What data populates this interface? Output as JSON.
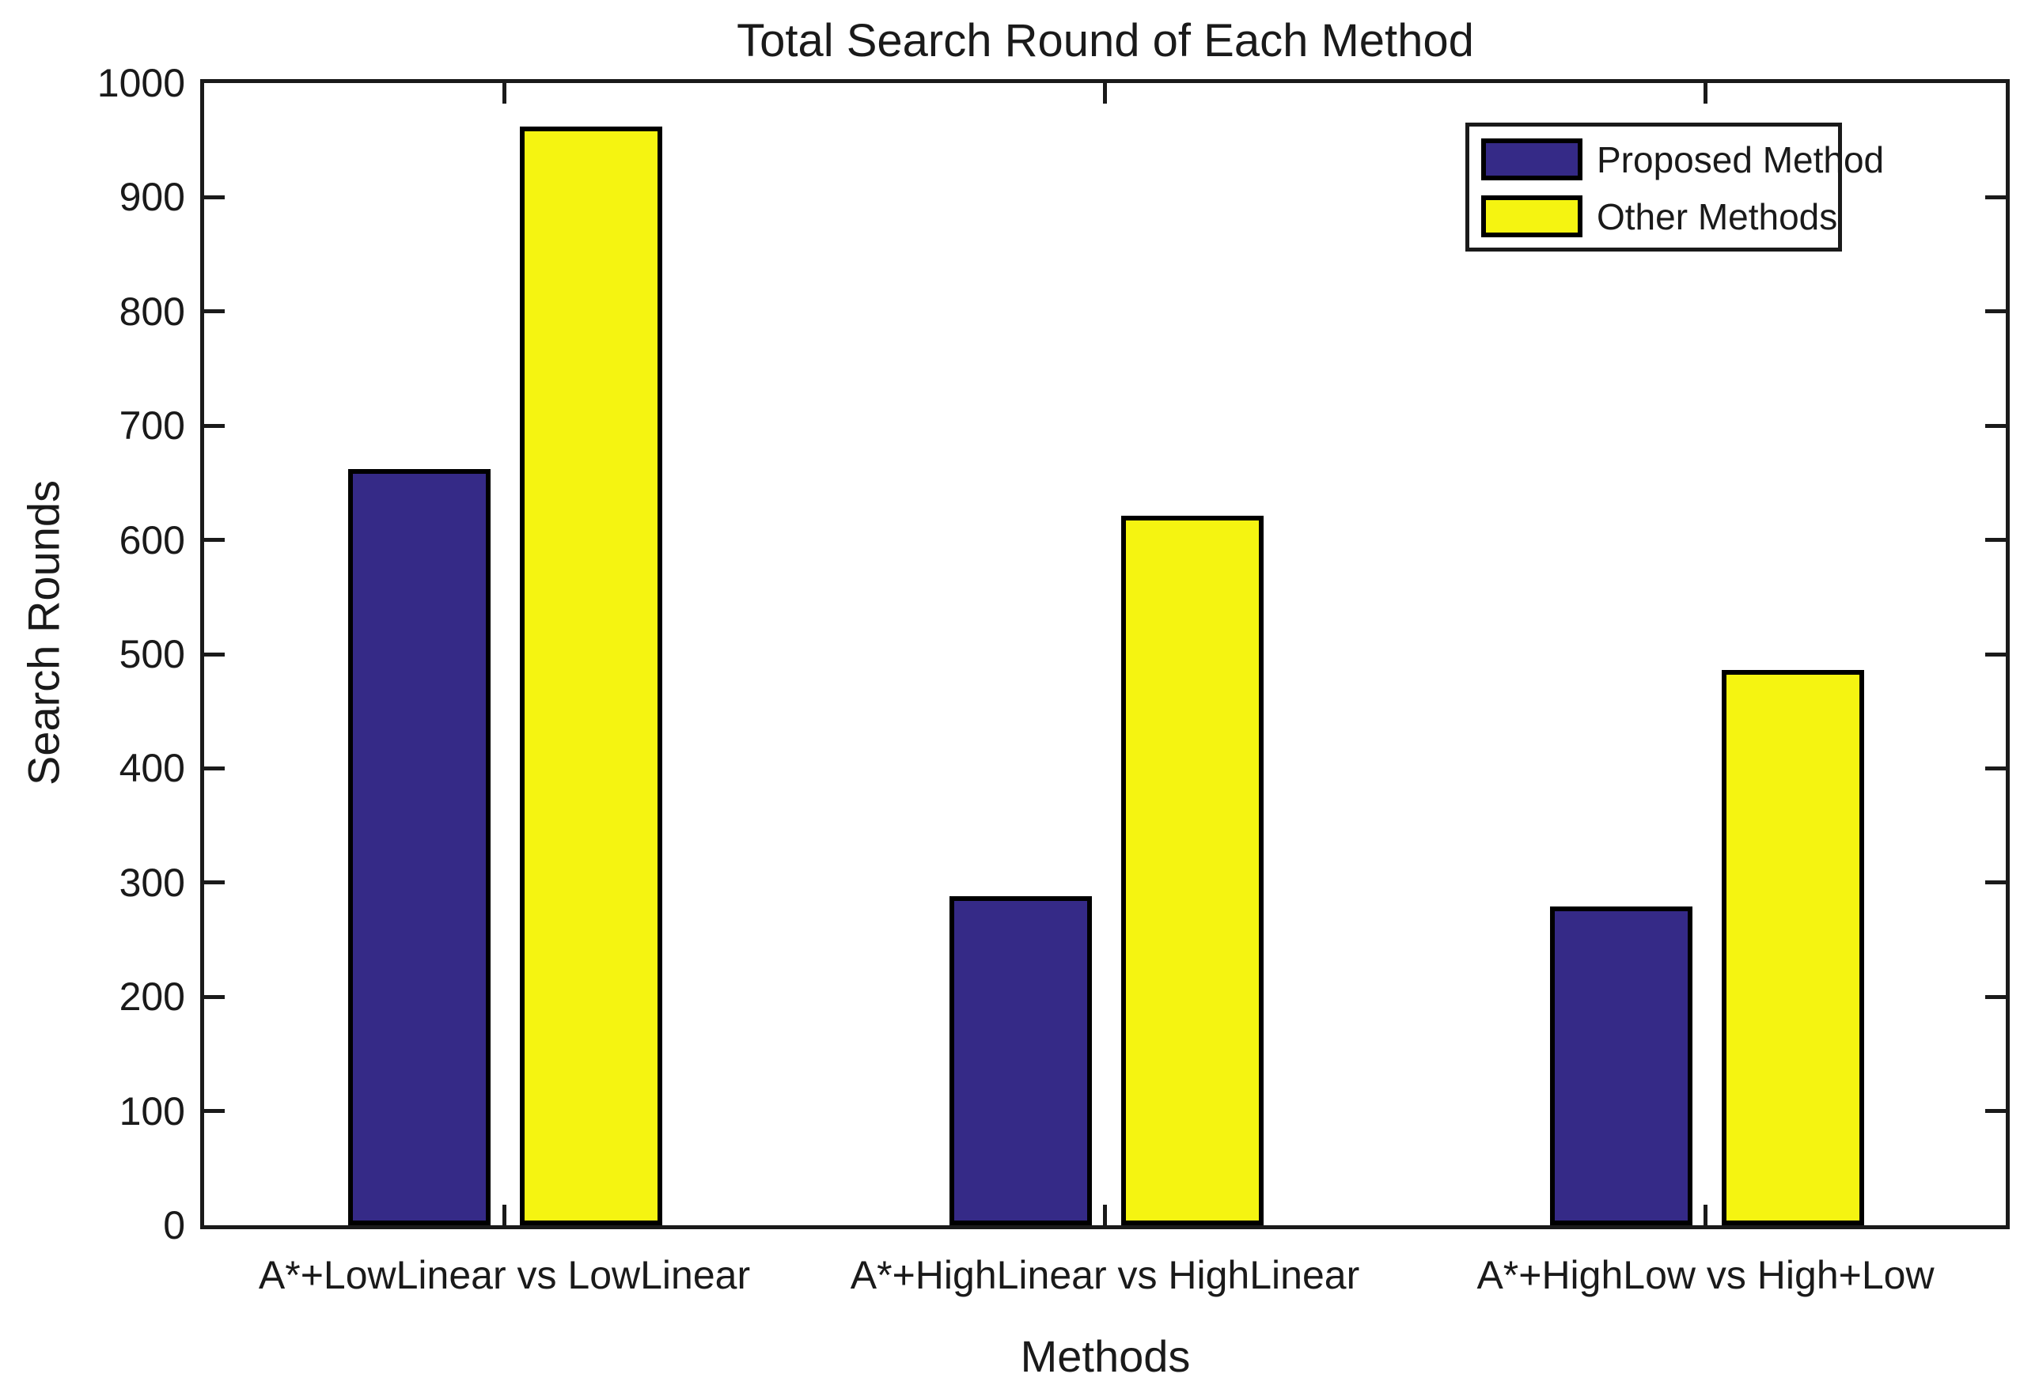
{
  "chart_data": {
    "type": "bar",
    "title": "Total Search Round of Each Method",
    "xlabel": "Methods",
    "ylabel": "Search Rounds",
    "categories": [
      "A*+LowLinear vs LowLinear",
      "A*+HighLinear vs HighLinear",
      "A*+HighLow vs High+Low"
    ],
    "series": [
      {
        "name": "Proposed Method",
        "color": "#352a87",
        "values": [
          662,
          288,
          279
        ]
      },
      {
        "name": "Other Methods",
        "color": "#f5f411",
        "values": [
          962,
          621,
          486
        ]
      }
    ],
    "ylim": [
      0,
      1000
    ],
    "yticks": [
      0,
      100,
      200,
      300,
      400,
      500,
      600,
      700,
      800,
      900,
      1000
    ],
    "grid": false,
    "legend_position": "top-right",
    "axis_color": "#1a1a1a",
    "bar_edge_color": "#000000",
    "background_color": "#ffffff"
  }
}
